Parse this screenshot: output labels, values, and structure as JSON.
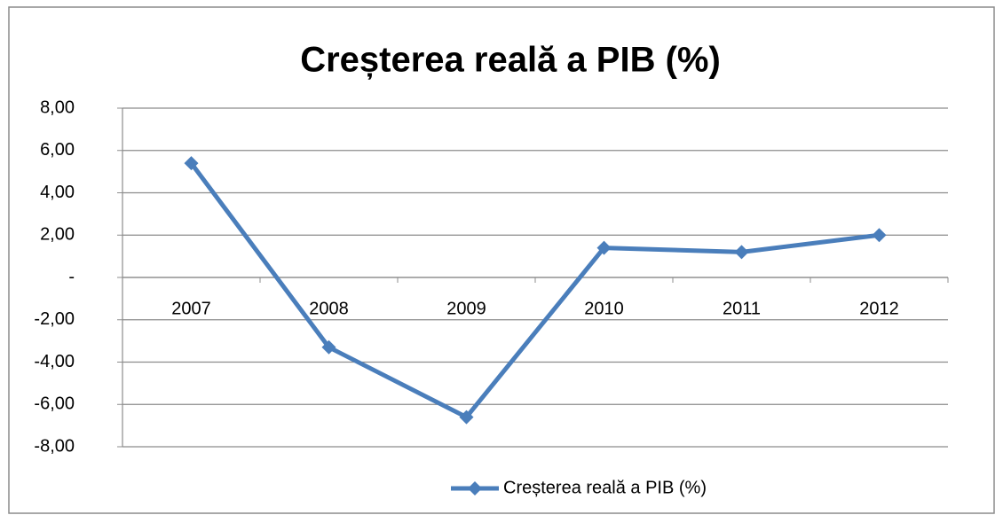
{
  "chart_data": {
    "type": "line",
    "title": "Creșterea reală a PIB (%)",
    "categories": [
      "2007",
      "2008",
      "2009",
      "2010",
      "2011",
      "2012"
    ],
    "series": [
      {
        "name": "Creșterea reală a PIB (%)",
        "color": "#4a7ebb",
        "values": [
          5.4,
          -3.3,
          -6.6,
          1.4,
          1.2,
          2.0
        ]
      }
    ],
    "ylim": [
      -8,
      8
    ],
    "yticks": [
      {
        "value": -8,
        "label": "-8,00"
      },
      {
        "value": -6,
        "label": "-6,00"
      },
      {
        "value": -4,
        "label": "-4,00"
      },
      {
        "value": -2,
        "label": "-2,00"
      },
      {
        "value": 0,
        "label": "-"
      },
      {
        "value": 2,
        "label": "2,00"
      },
      {
        "value": 4,
        "label": "4,00"
      },
      {
        "value": 6,
        "label": "6,00"
      },
      {
        "value": 8,
        "label": "8,00"
      }
    ],
    "grid": true,
    "legend": "bottom"
  }
}
